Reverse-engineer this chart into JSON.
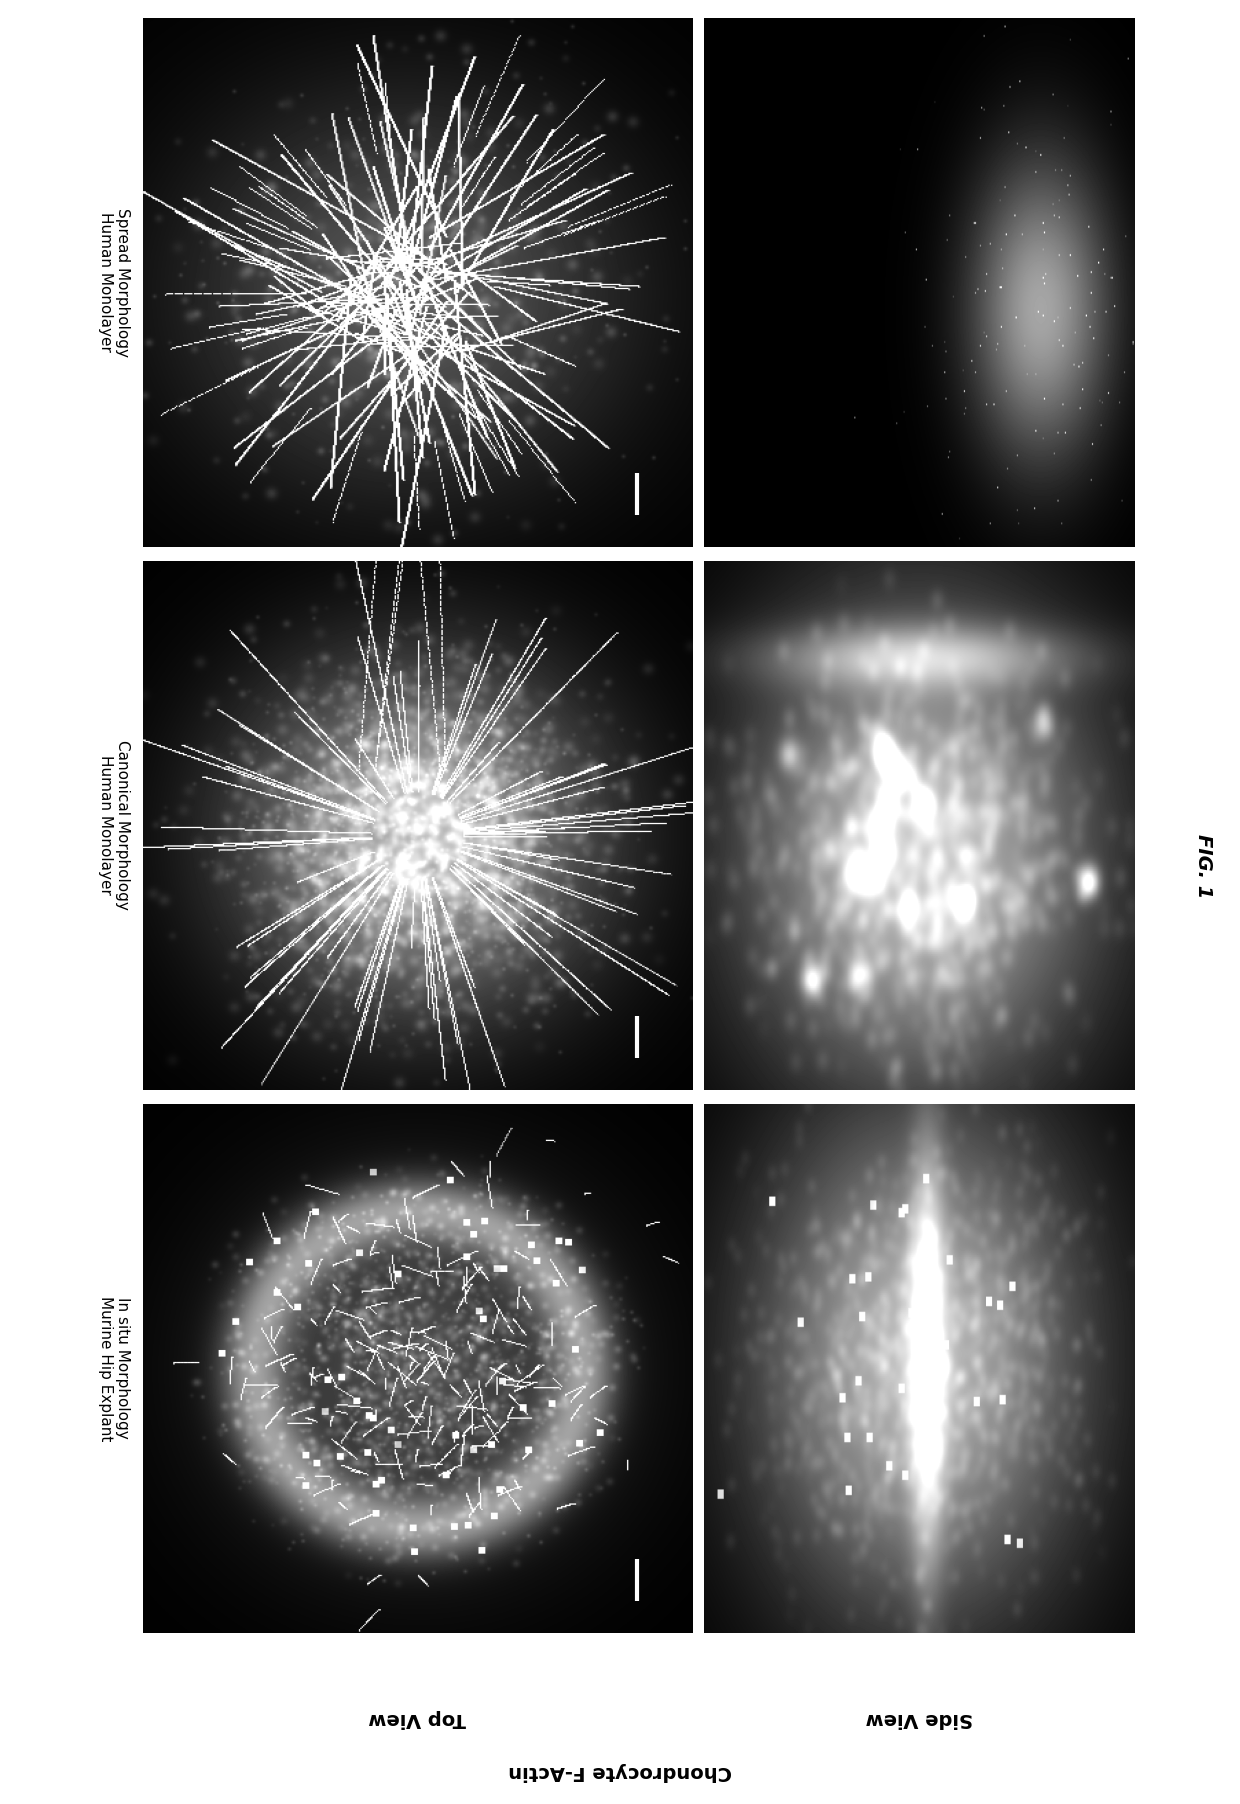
{
  "background_color": "#ffffff",
  "row_labels": [
    "Spread Morphology\nHuman Monolayer",
    "Canonical Morphology\nHuman Monolayer",
    "In situ Morphology\nMurine Hip Explant"
  ],
  "row_label_italic_word": "In situ",
  "col_label_top": "Top View",
  "col_label_side": "Side View",
  "xlabel": "Chondrocyte F-Actin",
  "fig_label": "FIG. 1",
  "n_rows": 3,
  "n_cols": 2,
  "label_fontsize": 14,
  "row_label_fontsize": 11,
  "fig_label_fontsize": 14,
  "scale_bar_color": "#ffffff",
  "cmap": "gray",
  "seed": 123
}
